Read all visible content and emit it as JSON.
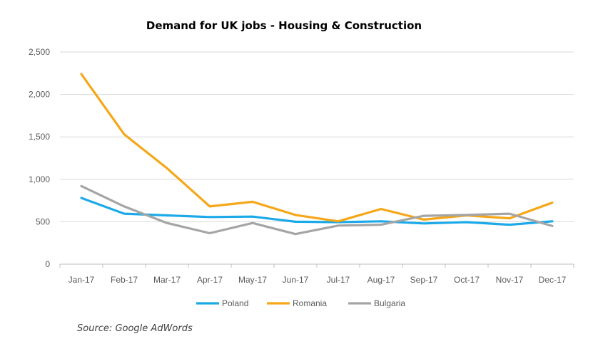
{
  "chart_data": {
    "type": "line",
    "title": "Demand for UK jobs - Housing & Construction",
    "categories": [
      "Jan-17",
      "Feb-17",
      "Mar-17",
      "Apr-17",
      "May-17",
      "Jun-17",
      "Jul-17",
      "Aug-17",
      "Sep-17",
      "Oct-17",
      "Nov-17",
      "Dec-17"
    ],
    "series": [
      {
        "name": "Poland",
        "color": "#1CA9E8",
        "values": [
          780,
          595,
          575,
          555,
          560,
          500,
          495,
          505,
          480,
          495,
          465,
          505
        ]
      },
      {
        "name": "Romania",
        "color": "#F5A718",
        "values": [
          2240,
          1530,
          1130,
          680,
          735,
          580,
          505,
          650,
          525,
          575,
          540,
          725
        ]
      },
      {
        "name": "Bulgaria",
        "color": "#A5A5A5",
        "values": [
          920,
          680,
          485,
          365,
          485,
          355,
          455,
          465,
          570,
          580,
          595,
          450
        ]
      }
    ],
    "yticks": [
      "0",
      "500",
      "1,000",
      "1,500",
      "2,000",
      "2,500"
    ],
    "ylim": [
      0,
      2500
    ],
    "grid": true,
    "legend_position": "bottom"
  },
  "source": "Source: Google AdWords"
}
